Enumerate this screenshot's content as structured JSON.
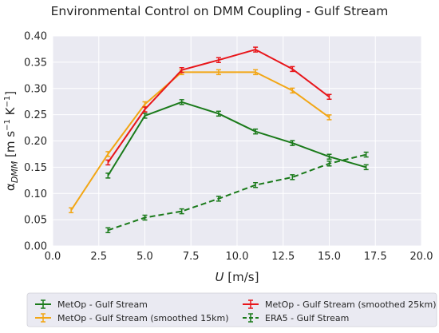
{
  "chart_data": {
    "type": "line",
    "title": "Environmental Control on DMM Coupling - Gulf Stream",
    "xlabel": "U [m/s]",
    "ylabel": "αDMM [m s−1 K−1]",
    "xlim": [
      0.0,
      20.0
    ],
    "ylim": [
      0.0,
      0.4
    ],
    "xticks": [
      "0.0",
      "2.5",
      "5.0",
      "7.5",
      "10.0",
      "12.5",
      "15.0",
      "17.5",
      "20.0"
    ],
    "yticks": [
      "0.00",
      "0.05",
      "0.10",
      "0.15",
      "0.20",
      "0.25",
      "0.30",
      "0.35",
      "0.40"
    ],
    "grid": true,
    "legend_position": "bottom",
    "series": [
      {
        "name": "MetOp - Gulf Stream",
        "color": "#1a7a1a",
        "dashed": false,
        "x": [
          3,
          5,
          7,
          9,
          11,
          13,
          15,
          17
        ],
        "y": [
          0.134,
          0.248,
          0.274,
          0.252,
          0.218,
          0.196,
          0.17,
          0.15
        ]
      },
      {
        "name": "MetOp - Gulf Stream (smoothed 15km)",
        "color": "#f2a615",
        "dashed": false,
        "x": [
          1,
          3,
          5,
          7,
          9,
          11,
          13,
          15
        ],
        "y": [
          0.068,
          0.175,
          0.27,
          0.331,
          0.331,
          0.331,
          0.296,
          0.245
        ]
      },
      {
        "name": "MetOp - Gulf Stream (smoothed 25km)",
        "color": "#e8161b",
        "dashed": false,
        "x": [
          3,
          5,
          7,
          9,
          11,
          13,
          15
        ],
        "y": [
          0.159,
          0.26,
          0.335,
          0.354,
          0.374,
          0.337,
          0.284
        ]
      },
      {
        "name": "ERA5 - Gulf Stream",
        "color": "#1a7a1a",
        "dashed": true,
        "x": [
          3,
          5,
          7,
          9,
          11,
          13,
          15,
          17
        ],
        "y": [
          0.03,
          0.054,
          0.066,
          0.09,
          0.116,
          0.131,
          0.157,
          0.174
        ]
      }
    ]
  }
}
